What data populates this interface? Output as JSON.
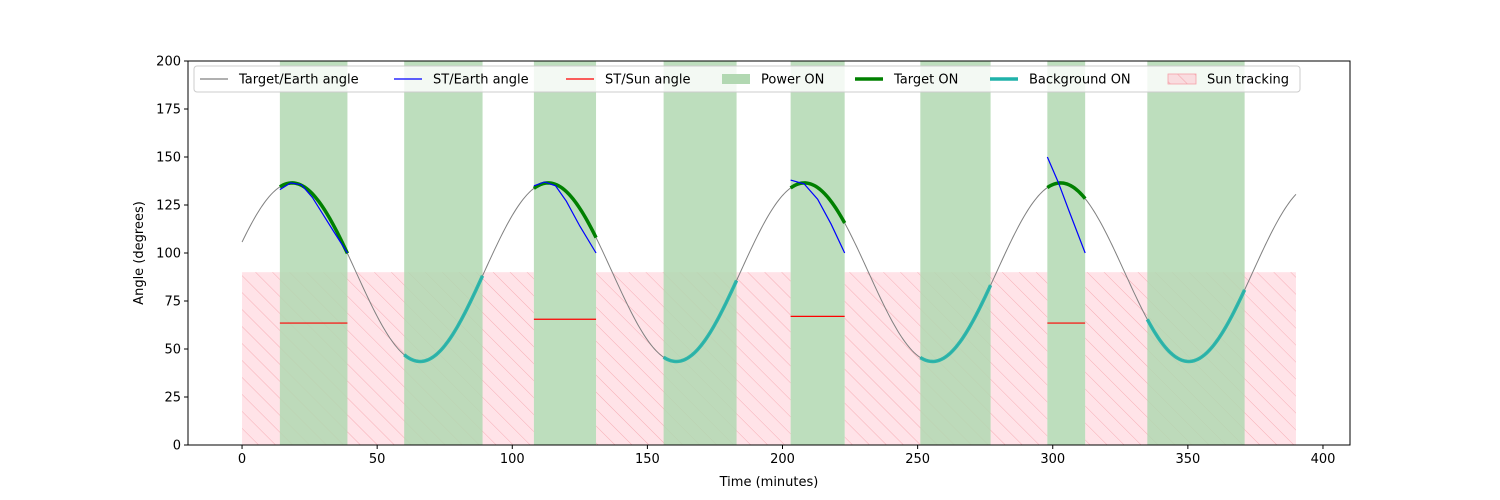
{
  "chart_data": {
    "type": "line",
    "title": "",
    "xlabel": "Time (minutes)",
    "ylabel": "Angle (degrees)",
    "xlim": [
      -20,
      410
    ],
    "ylim": [
      0,
      200
    ],
    "xticks": [
      0,
      50,
      100,
      150,
      200,
      250,
      300,
      350,
      400
    ],
    "yticks": [
      0,
      25,
      50,
      75,
      100,
      125,
      150,
      175,
      200
    ],
    "grid": false,
    "legend_position": "top",
    "colors": {
      "target_earth": "#808080",
      "st_earth": "#0000ff",
      "st_sun": "#ff0000",
      "power_on": "#b2d8b2",
      "target_on": "#008000",
      "background_on": "#20b2aa",
      "sun_tracking": "#ffc0cb"
    },
    "legend": [
      {
        "key": "target_earth",
        "label": "Target/Earth angle",
        "kind": "line"
      },
      {
        "key": "st_earth",
        "label": "ST/Earth angle",
        "kind": "line"
      },
      {
        "key": "st_sun",
        "label": "ST/Sun angle",
        "kind": "line"
      },
      {
        "key": "power_on",
        "label": "Power ON",
        "kind": "patch"
      },
      {
        "key": "target_on",
        "label": "Target ON",
        "kind": "thick"
      },
      {
        "key": "background_on",
        "label": "Background ON",
        "kind": "thick"
      },
      {
        "key": "sun_tracking",
        "label": "Sun tracking",
        "kind": "hatch"
      }
    ],
    "target_earth_model": {
      "center": 90,
      "amplitude": 46.5,
      "period_min": 94.8,
      "peak_time_min": 18.5
    },
    "time_range": [
      0,
      390
    ],
    "power_on_intervals": [
      [
        14,
        39
      ],
      [
        60,
        89
      ],
      [
        108,
        131
      ],
      [
        156,
        183
      ],
      [
        203,
        223
      ],
      [
        251,
        277
      ],
      [
        298,
        312
      ],
      [
        335,
        371
      ]
    ],
    "target_on_intervals": [
      [
        14,
        39
      ],
      [
        108,
        131
      ],
      [
        203,
        223
      ],
      [
        298,
        312
      ]
    ],
    "background_on_intervals": [
      [
        60,
        89
      ],
      [
        156,
        183
      ],
      [
        251,
        277
      ],
      [
        335,
        371
      ]
    ],
    "sun_tracking_level": 90,
    "sun_tracking_intervals": [
      [
        0,
        39
      ],
      [
        39,
        108
      ],
      [
        131,
        203
      ],
      [
        223,
        298
      ],
      [
        312,
        390
      ]
    ],
    "st_earth_segments": [
      {
        "x": [
          14,
          18,
          22,
          26,
          30,
          34,
          39
        ],
        "y": [
          133,
          136.5,
          135.5,
          129,
          120,
          111,
          100
        ]
      },
      {
        "x": [
          108,
          112,
          116,
          120,
          125,
          131
        ],
        "y": [
          135,
          137,
          135,
          127,
          114,
          100
        ]
      },
      {
        "x": [
          203,
          208,
          213,
          218,
          223
        ],
        "y": [
          138,
          136,
          128,
          115,
          100
        ]
      },
      {
        "x": [
          298,
          302,
          306,
          309,
          312
        ],
        "y": [
          150,
          137,
          122,
          111,
          100
        ]
      }
    ],
    "st_sun_segments": [
      {
        "x": [
          14,
          39
        ],
        "y": [
          63.5,
          63.5
        ]
      },
      {
        "x": [
          108,
          131
        ],
        "y": [
          65.5,
          65.5
        ]
      },
      {
        "x": [
          203,
          223
        ],
        "y": [
          67,
          67
        ]
      },
      {
        "x": [
          298,
          312
        ],
        "y": [
          63.5,
          63.5
        ]
      }
    ]
  }
}
